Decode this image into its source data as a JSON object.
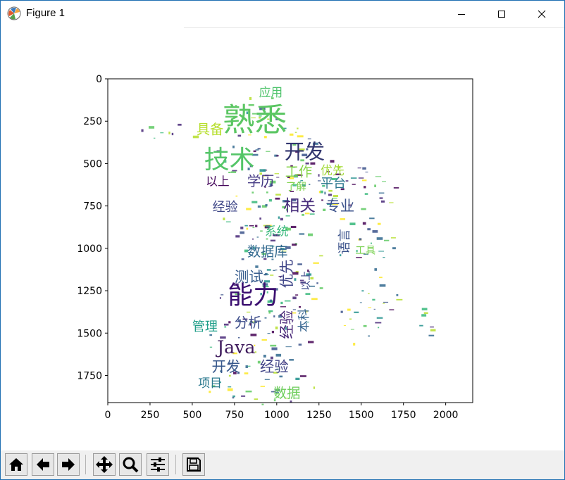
{
  "window": {
    "title": "Figure 1",
    "controls": {
      "minimize": "minimize",
      "maximize": "maximize",
      "close": "close"
    }
  },
  "chart_data": {
    "type": "image",
    "xlabel": "",
    "ylabel": "",
    "xlim": [
      0,
      2160
    ],
    "ylim": [
      1910,
      0
    ],
    "xticks": [
      0,
      250,
      500,
      750,
      1000,
      1250,
      1500,
      1750,
      2000
    ],
    "yticks": [
      0,
      250,
      500,
      750,
      1000,
      1250,
      1500,
      1750
    ],
    "image_content": "word cloud shaped like a figure",
    "words": [
      {
        "text": "熟悉",
        "x": 870,
        "y": 260,
        "size": 190,
        "color": "#5bc663"
      },
      {
        "text": "技术",
        "x": 720,
        "y": 490,
        "size": 150,
        "color": "#54c568"
      },
      {
        "text": "开发",
        "x": 1165,
        "y": 440,
        "size": 120,
        "color": "#31356e"
      },
      {
        "text": "能力",
        "x": 860,
        "y": 1290,
        "size": 150,
        "color": "#3b0f70"
      },
      {
        "text": "Java",
        "x": 760,
        "y": 1590,
        "size": 105,
        "color": "#3e1a5c"
      },
      {
        "text": "应用",
        "x": 965,
        "y": 85,
        "size": 70,
        "color": "#4ec36b"
      },
      {
        "text": "具备",
        "x": 605,
        "y": 305,
        "size": 80,
        "color": "#b6de2b"
      },
      {
        "text": "工作",
        "x": 1130,
        "y": 555,
        "size": 80,
        "color": "#86d549"
      },
      {
        "text": "优先",
        "x": 1330,
        "y": 545,
        "size": 70,
        "color": "#a2da37"
      },
      {
        "text": "以上",
        "x": 650,
        "y": 610,
        "size": 70,
        "color": "#46085c"
      },
      {
        "text": "学历",
        "x": 905,
        "y": 610,
        "size": 80,
        "color": "#443983"
      },
      {
        "text": "平台",
        "x": 1335,
        "y": 620,
        "size": 75,
        "color": "#2a768e"
      },
      {
        "text": "了解",
        "x": 1115,
        "y": 640,
        "size": 60,
        "color": "#7fd34e"
      },
      {
        "text": "经验",
        "x": 695,
        "y": 760,
        "size": 75,
        "color": "#3f4788"
      },
      {
        "text": "相关",
        "x": 1135,
        "y": 755,
        "size": 95,
        "color": "#472d7b"
      },
      {
        "text": "专业",
        "x": 1375,
        "y": 755,
        "size": 85,
        "color": "#3b528b"
      },
      {
        "text": "系统",
        "x": 1000,
        "y": 905,
        "size": 70,
        "color": "#35b779"
      },
      {
        "text": "数据库",
        "x": 945,
        "y": 1025,
        "size": 80,
        "color": "#31688e"
      },
      {
        "text": "测试",
        "x": 835,
        "y": 1175,
        "size": 85,
        "color": "#365c8d"
      },
      {
        "text": "分析",
        "x": 830,
        "y": 1445,
        "size": 80,
        "color": "#3d4d8a"
      },
      {
        "text": "管理",
        "x": 575,
        "y": 1465,
        "size": 75,
        "color": "#1f9e89"
      },
      {
        "text": "开发",
        "x": 700,
        "y": 1705,
        "size": 85,
        "color": "#38588c"
      },
      {
        "text": "经验",
        "x": 985,
        "y": 1705,
        "size": 85,
        "color": "#414487"
      },
      {
        "text": "项目",
        "x": 605,
        "y": 1800,
        "size": 70,
        "color": "#2a788e"
      },
      {
        "text": "数据",
        "x": 1060,
        "y": 1860,
        "size": 80,
        "color": "#6ccd5a"
      },
      {
        "text": "工具",
        "x": 1525,
        "y": 1015,
        "size": 60,
        "color": "#7ad151"
      }
    ],
    "vertical_words": [
      {
        "text": "语言",
        "x": 1405,
        "y": 960,
        "size": 75,
        "color": "#3b528b"
      },
      {
        "text": "优先",
        "x": 1065,
        "y": 1150,
        "size": 85,
        "color": "#404688"
      },
      {
        "text": "以上",
        "x": 1175,
        "y": 1190,
        "size": 60,
        "color": "#3e4a89"
      },
      {
        "text": "经验",
        "x": 1065,
        "y": 1450,
        "size": 85,
        "color": "#482677"
      },
      {
        "text": "本科",
        "x": 1165,
        "y": 1425,
        "size": 70,
        "color": "#33638d"
      }
    ]
  },
  "toolbar": {
    "buttons": [
      {
        "name": "home-button",
        "icon": "home-icon"
      },
      {
        "name": "back-button",
        "icon": "arrow-left-icon"
      },
      {
        "name": "forward-button",
        "icon": "arrow-right-icon"
      },
      {
        "name": "pan-button",
        "icon": "move-icon"
      },
      {
        "name": "zoom-button",
        "icon": "zoom-icon"
      },
      {
        "name": "configure-subplots-button",
        "icon": "sliders-icon"
      },
      {
        "name": "save-button",
        "icon": "save-icon"
      }
    ]
  }
}
